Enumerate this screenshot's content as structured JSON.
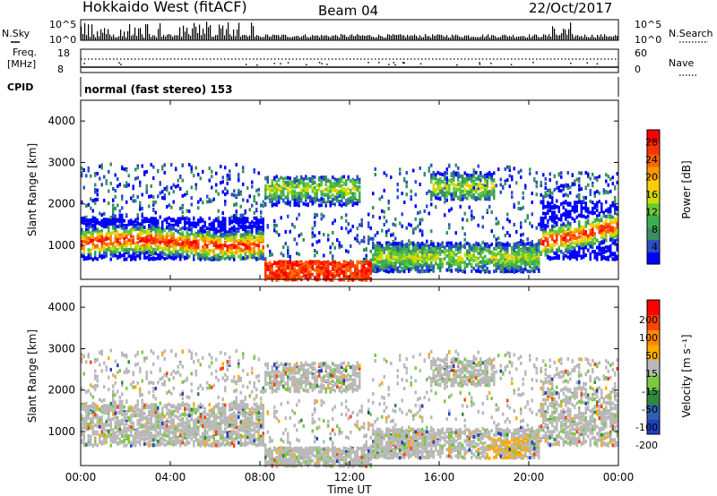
{
  "header": {
    "station": "Hokkaido West (fitACF)",
    "beam": "Beam 04",
    "date": "22/Oct/2017"
  },
  "top_panels": {
    "nsky_label": "N.Sky",
    "nsky_ticks": [
      "10^5",
      "10^0"
    ],
    "nsearch_label": "N.Search",
    "nsearch_ticks": [
      "10^5",
      "10^0"
    ],
    "freq_label_1": "Freq.",
    "freq_label_2": "[MHz]",
    "freq_ticks": [
      "18",
      "8"
    ],
    "nave_label": "Nave",
    "nave_ticks": [
      "60",
      "0"
    ],
    "cpid_label": "CPID",
    "cpid_text": "normal (fast stereo) 153"
  },
  "chart_data": [
    {
      "type": "heatmap",
      "name": "power-panel",
      "xlabel": "",
      "ylabel": "Slant Range [km]",
      "ylim": [
        180,
        4500
      ],
      "y_ticks": [
        "1000",
        "2000",
        "3000",
        "4000"
      ],
      "y_tick_values": [
        1000,
        2000,
        3000,
        4000
      ],
      "colorbar_label": "Power [dB]",
      "colorbar_ticks": [
        "4",
        "8",
        "12",
        "16",
        "20",
        "24",
        "28"
      ],
      "colorbar_colors": [
        "#0000ff",
        "#2a4ec8",
        "#3a9060",
        "#3cb050",
        "#66cc33",
        "#ccdd00",
        "#ffcc00",
        "#ff9900",
        "#ff6600",
        "#ff3300",
        "#ff0000"
      ],
      "colorbar_range": [
        0,
        31
      ]
    },
    {
      "type": "heatmap",
      "name": "velocity-panel",
      "xlabel": "Time UT",
      "ylabel": "Slant Range [km]",
      "ylim": [
        180,
        4500
      ],
      "x_ticks": [
        "00:00",
        "04:00",
        "08:00",
        "12:00",
        "16:00",
        "20:00",
        "00:00"
      ],
      "x_tick_hours": [
        0,
        4,
        8,
        12,
        16,
        20,
        24
      ],
      "y_ticks": [
        "1000",
        "2000",
        "3000",
        "4000"
      ],
      "y_tick_values": [
        1000,
        2000,
        3000,
        4000
      ],
      "colorbar_label": "Velocity [m s⁻¹]",
      "colorbar_ticks": [
        "200",
        "100",
        "50",
        "15",
        "-15",
        "-50",
        "-100",
        "-200"
      ],
      "colorbar_colors": [
        "#2040c0",
        "#3060b0",
        "#2e8a3e",
        "#7ac943",
        "#b9b9b9",
        "#ffaa00",
        "#ff8800",
        "#ff4400",
        "#ff0000"
      ]
    }
  ]
}
